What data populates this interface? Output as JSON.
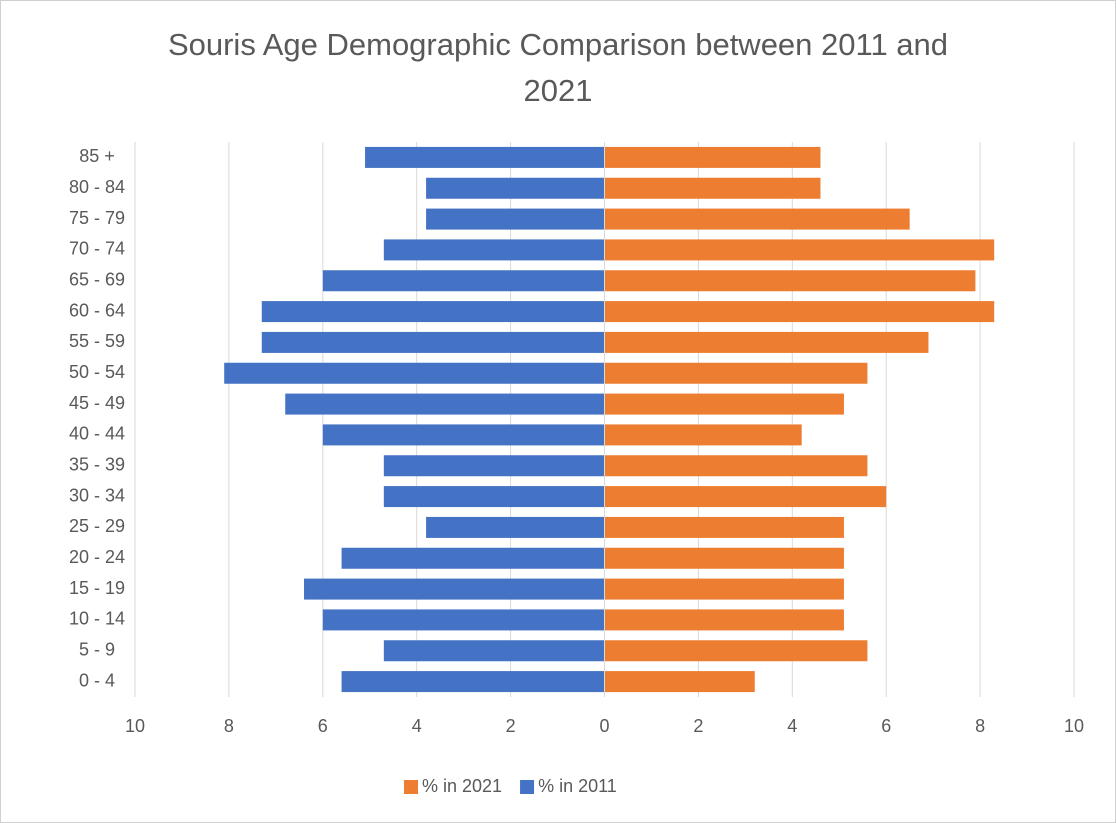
{
  "chart_data": {
    "type": "bar",
    "orientation": "horizontal",
    "title": "Souris Age Demographic Comparison between 2011 and 2021",
    "categories": [
      "0 - 4",
      "5 - 9",
      "10 - 14",
      "15 - 19",
      "20 - 24",
      "25 - 29",
      "30 - 34",
      "35 - 39",
      "40 - 44",
      "45 - 49",
      "50 - 54",
      "55 - 59",
      "60 - 64",
      "65 - 69",
      "70 - 74",
      "75 - 79",
      "80 - 84",
      "85 +"
    ],
    "series": [
      {
        "name": "% in 2021",
        "color": "#ed7d31",
        "values": [
          3.2,
          5.6,
          5.1,
          5.1,
          5.1,
          5.1,
          6.0,
          5.6,
          4.2,
          5.1,
          5.6,
          6.9,
          8.3,
          7.9,
          8.3,
          6.5,
          4.6,
          4.6
        ]
      },
      {
        "name": "% in 2011",
        "color": "#4472c4",
        "values": [
          -5.6,
          -4.7,
          -6.0,
          -6.4,
          -5.6,
          -3.8,
          -4.7,
          -4.7,
          -6.0,
          -6.8,
          -8.1,
          -7.3,
          -7.3,
          -6.0,
          -4.7,
          -3.8,
          -3.8,
          -5.1
        ]
      }
    ],
    "xlim": [
      -10,
      10
    ],
    "xticks": [
      {
        "value": -10,
        "label": "10"
      },
      {
        "value": -8,
        "label": "8"
      },
      {
        "value": -6,
        "label": "6"
      },
      {
        "value": -4,
        "label": "4"
      },
      {
        "value": -2,
        "label": "2"
      },
      0,
      2,
      4,
      6,
      8,
      10
    ],
    "grid": true,
    "legend": "bottom"
  }
}
